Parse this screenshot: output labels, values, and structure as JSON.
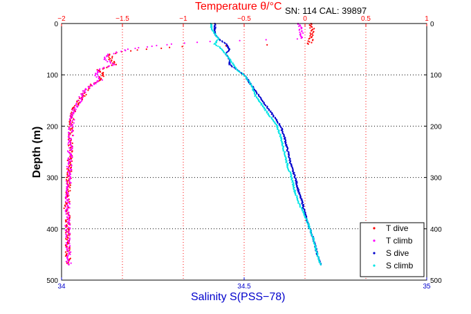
{
  "chart_data": {
    "type": "scatter",
    "title_temperature": "Temperature θ/°C",
    "title_salinity": "Salinity S(PSS−78)",
    "ylabel": "Depth (m)",
    "instrument_label": "SN: 114  CAL: 39897",
    "top_axis": {
      "min": -2,
      "max": 1,
      "ticks": [
        "−2",
        "−1.5",
        "−1",
        "−0.5",
        "0",
        "0.5",
        "1"
      ],
      "color": "#ff0000"
    },
    "bottom_axis": {
      "min": 34,
      "max": 35,
      "ticks": [
        "34",
        "34.5",
        "35"
      ],
      "color": "#0000cc"
    },
    "y_axis": {
      "min": 0,
      "max": 500,
      "reversed": true,
      "ticks": [
        "0",
        "100",
        "200",
        "300",
        "400",
        "500"
      ]
    },
    "grid": true,
    "legend_position": "bottom-right",
    "series": [
      {
        "name": "T dive",
        "axis": "temperature",
        "color": "#ff0000",
        "depth": [
          0,
          10,
          20,
          30,
          40,
          45,
          50,
          55,
          60,
          70,
          80,
          90,
          100,
          110,
          120,
          130,
          140,
          150,
          160,
          170,
          180,
          200,
          250,
          300,
          350,
          360,
          365,
          400,
          450,
          470
        ],
        "values": [
          0.05,
          0.06,
          0.06,
          0.05,
          0.03,
          -1.0,
          -1.3,
          -1.5,
          -1.6,
          -1.6,
          -1.55,
          -1.7,
          -1.65,
          -1.7,
          -1.75,
          -1.8,
          -1.82,
          -1.85,
          -1.88,
          -1.9,
          -1.91,
          -1.92,
          -1.93,
          -1.94,
          -1.95,
          -1.96,
          -1.95,
          -1.95,
          -1.95,
          -1.94
        ]
      },
      {
        "name": "T climb",
        "axis": "temperature",
        "color": "#ff00ff",
        "depth": [
          0,
          10,
          20,
          30,
          35,
          40,
          50,
          60,
          70,
          80,
          90,
          100,
          110,
          120,
          130,
          140,
          150,
          160,
          170,
          180,
          200,
          250,
          300,
          350,
          400,
          450,
          470
        ],
        "values": [
          -0.05,
          -0.03,
          -0.02,
          -0.05,
          -0.8,
          -1.1,
          -1.45,
          -1.6,
          -1.65,
          -1.55,
          -1.7,
          -1.72,
          -1.68,
          -1.75,
          -1.8,
          -1.83,
          -1.85,
          -1.88,
          -1.9,
          -1.91,
          -1.92,
          -1.93,
          -1.94,
          -1.95,
          -1.95,
          -1.94,
          -1.94
        ]
      },
      {
        "name": "S dive",
        "axis": "salinity",
        "color": "#0000cc",
        "depth": [
          0,
          10,
          20,
          30,
          40,
          50,
          60,
          70,
          80,
          90,
          100,
          120,
          140,
          160,
          180,
          200,
          220,
          250,
          280,
          300,
          330,
          350,
          380,
          400,
          420,
          450,
          470
        ],
        "values": [
          34.42,
          34.42,
          34.42,
          34.43,
          34.45,
          34.46,
          34.45,
          34.46,
          34.46,
          34.48,
          34.5,
          34.52,
          34.54,
          34.56,
          34.58,
          34.6,
          34.61,
          34.62,
          34.63,
          34.64,
          34.65,
          34.66,
          34.67,
          34.68,
          34.69,
          34.7,
          34.71
        ]
      },
      {
        "name": "S climb",
        "axis": "salinity",
        "color": "#00e5e5",
        "depth": [
          0,
          10,
          20,
          30,
          40,
          50,
          60,
          70,
          80,
          90,
          100,
          120,
          140,
          160,
          180,
          200,
          220,
          250,
          280,
          300,
          330,
          350,
          380,
          400,
          420,
          450,
          470
        ],
        "values": [
          34.41,
          34.41,
          34.42,
          34.43,
          34.42,
          34.44,
          34.45,
          34.46,
          34.47,
          34.48,
          34.5,
          34.52,
          34.53,
          34.55,
          34.57,
          34.59,
          34.6,
          34.61,
          34.62,
          34.63,
          34.64,
          34.65,
          34.67,
          34.68,
          34.69,
          34.7,
          34.71
        ]
      }
    ]
  }
}
